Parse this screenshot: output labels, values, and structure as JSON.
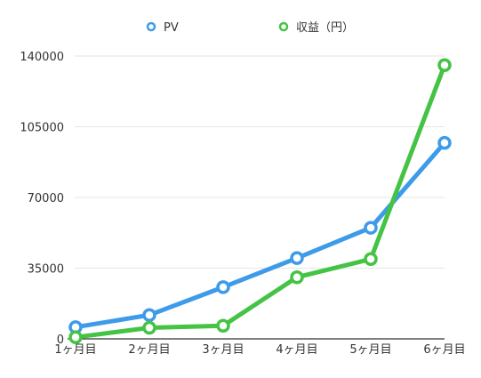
{
  "chart_data": {
    "type": "line",
    "title": "",
    "xlabel": "",
    "ylabel": "",
    "categories": [
      "1ヶ月目",
      "2ヶ月目",
      "3ヶ月目",
      "4ヶ月目",
      "5ヶ月目",
      "6ヶ月目"
    ],
    "ylim": [
      0,
      140000
    ],
    "yticks": [
      0,
      35000,
      70000,
      105000,
      140000
    ],
    "grid": true,
    "legend": "top",
    "series": [
      {
        "name": "PV",
        "color": "#3d9be9",
        "values": [
          5800,
          11800,
          25600,
          40000,
          55000,
          97000
        ]
      },
      {
        "name": "収益（円）",
        "color": "#44c344",
        "values": [
          800,
          5500,
          6500,
          30500,
          39500,
          135500
        ]
      }
    ]
  }
}
